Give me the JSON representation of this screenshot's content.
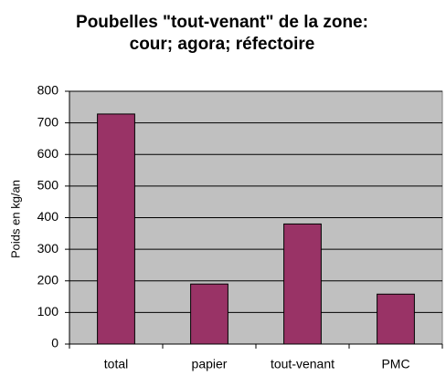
{
  "chart_data": {
    "type": "bar",
    "title": [
      "Poubelles \"tout-venant\" de la zone:",
      "cour; agora; réfectoire"
    ],
    "y_label": "Poids en kg/an",
    "categories": [
      "total",
      "papier",
      "tout-venant",
      "PMC"
    ],
    "values": [
      728,
      190,
      380,
      158
    ],
    "color": "#993366",
    "ylim": [
      0,
      800
    ],
    "yticks": [
      0,
      100,
      200,
      300,
      400,
      500,
      600,
      700,
      800
    ],
    "grid": true
  }
}
